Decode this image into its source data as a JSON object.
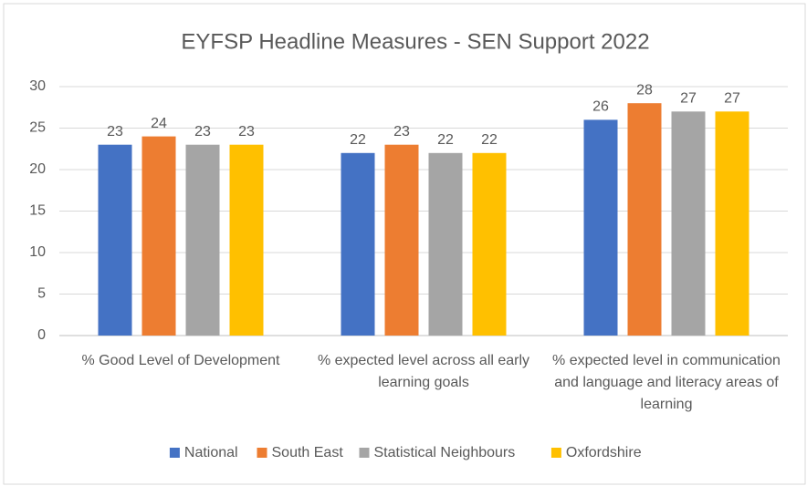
{
  "chart_data": {
    "type": "bar",
    "title": "EYFSP Headline Measures - SEN Support 2022",
    "categories": [
      "% Good Level of Development",
      "% expected level across all early learning goals",
      "% expected level in communication and language and literacy areas of learning"
    ],
    "series": [
      {
        "name": "National",
        "color": "#4472c4",
        "values": [
          23,
          22,
          26
        ]
      },
      {
        "name": "South East",
        "color": "#ed7d31",
        "values": [
          24,
          23,
          28
        ]
      },
      {
        "name": "Statistical Neighbours",
        "color": "#a5a5a5",
        "values": [
          23,
          22,
          27
        ]
      },
      {
        "name": "Oxfordshire",
        "color": "#ffc000",
        "values": [
          23,
          22,
          27
        ]
      }
    ],
    "ylim": [
      0,
      30
    ],
    "yticks": [
      0,
      5,
      10,
      15,
      20,
      25,
      30
    ],
    "grid": true,
    "legend": "bottom"
  }
}
